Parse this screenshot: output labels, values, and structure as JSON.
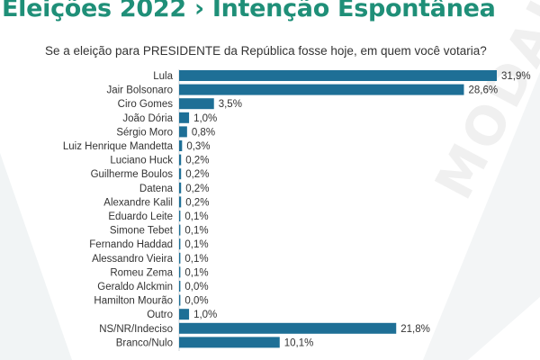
{
  "header": {
    "title": "Eleições 2022 › Intenção Espontânea",
    "question": "Se a eleição para PRESIDENTE da República fosse hoje, em quem você votaria?",
    "watermark": "MODALMAIS"
  },
  "colors": {
    "title": "#1f8f78",
    "bar": "#1e6f96",
    "background_shape": "#eef2f3"
  },
  "chart_data": {
    "type": "bar",
    "orientation": "horizontal",
    "title": "Eleições 2022 › Intenção Espontânea",
    "subtitle": "Se a eleição para PRESIDENTE da República fosse hoje, em quem você votaria?",
    "categories": [
      "Lula",
      "Jair Bolsonaro",
      "Ciro Gomes",
      "João Dória",
      "Sérgio Moro",
      "Luiz Henrique Mandetta",
      "Luciano Huck",
      "Guilherme Boulos",
      "Datena",
      "Alexandre Kalil",
      "Eduardo Leite",
      "Simone Tebet",
      "Fernando Haddad",
      "Alessandro Vieira",
      "Romeu Zema",
      "Geraldo Alckmin",
      "Hamilton Mourão",
      "Outro",
      "NS/NR/Indeciso",
      "Branco/Nulo"
    ],
    "values": [
      31.9,
      28.6,
      3.5,
      1.0,
      0.8,
      0.3,
      0.2,
      0.2,
      0.2,
      0.2,
      0.1,
      0.1,
      0.1,
      0.1,
      0.1,
      0.0,
      0.0,
      1.0,
      21.8,
      10.1
    ],
    "value_labels": [
      "31,9%",
      "28,6%",
      "3,5%",
      "1,0%",
      "0,8%",
      "0,3%",
      "0,2%",
      "0,2%",
      "0,2%",
      "0,2%",
      "0,1%",
      "0,1%",
      "0,1%",
      "0,1%",
      "0,1%",
      "0,0%",
      "0,0%",
      "1,0%",
      "21,8%",
      "10,1%"
    ],
    "xlim": [
      0,
      31.9
    ],
    "grid": false,
    "legend": "none",
    "xlabel": "",
    "ylabel": ""
  }
}
